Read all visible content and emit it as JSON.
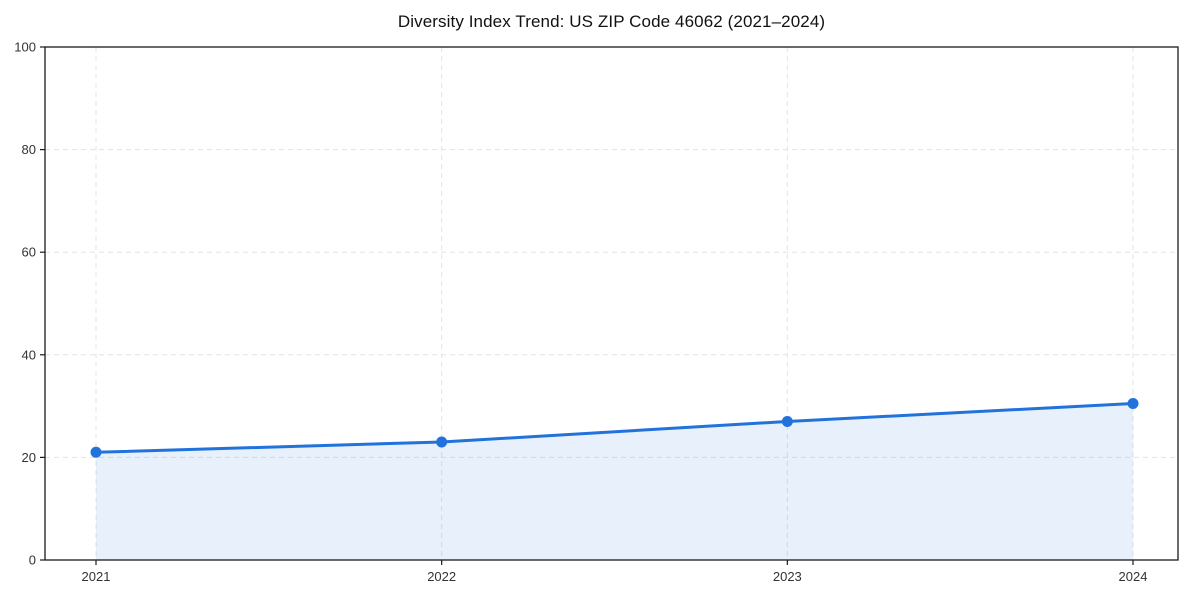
{
  "chart_data": {
    "type": "area",
    "title": "Diversity Index Trend: US ZIP Code 46062 (2021–2024)",
    "x": [
      2021,
      2022,
      2023,
      2024
    ],
    "x_tick_labels": [
      "2021",
      "2022",
      "2023",
      "2024"
    ],
    "values": [
      21,
      23,
      27,
      30.5
    ],
    "xlabel": "",
    "ylabel": "",
    "ylim": [
      0,
      100
    ],
    "yticks": [
      0,
      20,
      40,
      60,
      80,
      100
    ],
    "y_tick_labels": [
      "0",
      "20",
      "40",
      "60",
      "80",
      "100"
    ],
    "grid": true,
    "grid_style": "dashed",
    "legend": false,
    "line_color": "#2272dc",
    "marker_color": "#2272dc",
    "fill_color": "rgba(34,114,220,0.10)",
    "grid_color": "#e3e3e3",
    "axis_color": "#1a1a1a",
    "tick_label_color": "#333333",
    "title_color": "#111111"
  }
}
